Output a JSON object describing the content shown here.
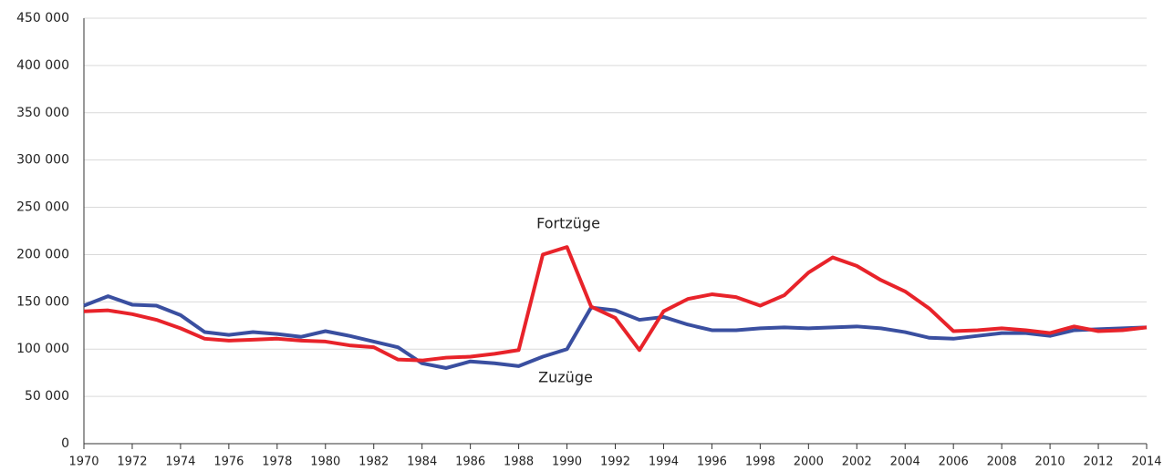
{
  "chart_data": {
    "type": "line",
    "x": [
      1970,
      1971,
      1972,
      1973,
      1974,
      1975,
      1976,
      1977,
      1978,
      1979,
      1980,
      1981,
      1982,
      1983,
      1984,
      1985,
      1986,
      1987,
      1988,
      1989,
      1990,
      1991,
      1992,
      1993,
      1994,
      1995,
      1996,
      1997,
      1998,
      1999,
      2000,
      2001,
      2002,
      2003,
      2004,
      2005,
      2006,
      2007,
      2008,
      2009,
      2010,
      2011,
      2012,
      2013,
      2014
    ],
    "series": [
      {
        "name": "Zuzüge",
        "color": "#3a4fa0",
        "values": [
          146000,
          156000,
          147000,
          146000,
          136000,
          118000,
          115000,
          118000,
          116000,
          113000,
          119000,
          114000,
          108000,
          102000,
          85000,
          80000,
          87000,
          85000,
          82000,
          92000,
          100000,
          144000,
          141000,
          131000,
          134000,
          126000,
          120000,
          120000,
          122000,
          123000,
          122000,
          123000,
          124000,
          122000,
          118000,
          112000,
          111000,
          114000,
          117000,
          117000,
          114000,
          120000,
          121000,
          122000,
          123000
        ]
      },
      {
        "name": "Fortzüge",
        "color": "#e8232a",
        "values": [
          140000,
          141000,
          137000,
          131000,
          122000,
          111000,
          109000,
          110000,
          111000,
          109000,
          108000,
          104000,
          102000,
          89000,
          88000,
          91000,
          92000,
          95000,
          99000,
          200000,
          208000,
          145000,
          133000,
          99000,
          140000,
          153000,
          158000,
          155000,
          146000,
          157000,
          181000,
          197000,
          188000,
          173000,
          161000,
          143000,
          119000,
          120000,
          122000,
          120000,
          117000,
          124000,
          119000,
          120000,
          123000
        ]
      }
    ],
    "xlim": [
      1970,
      2014
    ],
    "xticks": [
      1970,
      1972,
      1974,
      1976,
      1978,
      1980,
      1982,
      1984,
      1986,
      1988,
      1990,
      1992,
      1994,
      1996,
      1998,
      2000,
      2002,
      2004,
      2006,
      2008,
      2010,
      2012,
      2014
    ],
    "ylim": [
      0,
      450000
    ],
    "yticks": [
      0,
      {
        "value": 50000,
        "label": "50 000"
      },
      {
        "value": 100000,
        "label": "100 000"
      },
      {
        "value": 150000,
        "label": "150 000"
      },
      {
        "value": 200000,
        "label": "200 000"
      },
      {
        "value": 250000,
        "label": "250 000"
      },
      {
        "value": 300000,
        "label": "300 000"
      },
      {
        "value": 350000,
        "label": "350 000"
      },
      {
        "value": 400000,
        "label": "400 000"
      },
      {
        "value": 450000,
        "label": "450 000"
      }
    ],
    "grid": true
  }
}
